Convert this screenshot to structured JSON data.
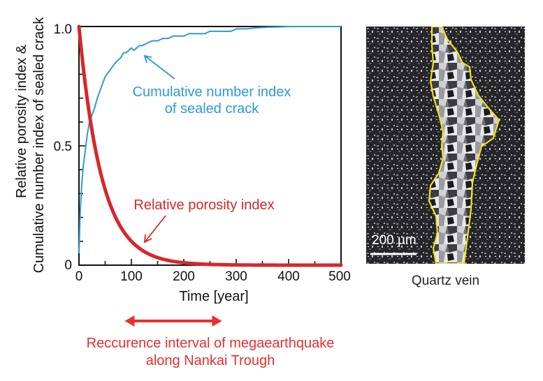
{
  "chart_data": {
    "type": "line",
    "xlabel": "Time [year]",
    "ylabel_line1": "Relative porosity index &",
    "ylabel_line2": "Cumulative number index of sealed crack",
    "xlim": [
      0,
      500
    ],
    "ylim": [
      0,
      1.0
    ],
    "x_ticks": [
      0,
      100,
      200,
      300,
      400,
      500
    ],
    "x_tick_labels": [
      "0",
      "100",
      "200",
      "300",
      "400",
      "500"
    ],
    "y_tick_labels": [
      {
        "value": 0,
        "label": "0"
      },
      {
        "value": 0.5,
        "label": "0.5"
      },
      {
        "value": 1.0,
        "label": "1.0"
      }
    ],
    "series": [
      {
        "name": "Cumulative number index of sealed crack",
        "color": "#2e9ad6",
        "x": [
          0,
          2,
          5,
          8,
          12,
          16,
          20,
          25,
          30,
          35,
          40,
          45,
          50,
          60,
          70,
          80,
          85,
          90,
          95,
          100,
          105,
          110,
          115,
          120,
          130,
          140,
          150,
          160,
          170,
          180,
          190,
          200,
          210,
          220,
          230,
          240,
          250,
          260,
          270,
          280,
          290,
          300,
          320,
          340,
          360,
          380,
          400,
          450,
          500
        ],
        "y": [
          0.05,
          0.2,
          0.33,
          0.41,
          0.48,
          0.55,
          0.6,
          0.63,
          0.66,
          0.7,
          0.73,
          0.76,
          0.79,
          0.82,
          0.85,
          0.87,
          0.89,
          0.89,
          0.9,
          0.91,
          0.9,
          0.91,
          0.92,
          0.92,
          0.93,
          0.94,
          0.94,
          0.95,
          0.95,
          0.96,
          0.96,
          0.96,
          0.97,
          0.97,
          0.97,
          0.97,
          0.98,
          0.98,
          0.98,
          0.98,
          0.98,
          0.99,
          0.99,
          0.995,
          0.997,
          0.998,
          1.0,
          1.0,
          1.0
        ]
      },
      {
        "name": "Relative porosity index",
        "color": "#d9262a",
        "decay_rate": 0.023
      }
    ],
    "annotations": [
      {
        "key": "blue_label_1",
        "text": "Cumulative number index",
        "color": "#2e9ad6"
      },
      {
        "key": "blue_label_2",
        "text": "of sealed crack",
        "color": "#2e9ad6"
      },
      {
        "key": "red_label",
        "text": "Relative porosity index",
        "color": "#d9262a"
      },
      {
        "key": "interval_1",
        "text": "Reccurence interval of megaearthquake",
        "color": "#e8302d"
      },
      {
        "key": "interval_2",
        "text": "along Nankai Trough",
        "color": "#e8302d"
      }
    ],
    "recurrence_interval_years": [
      90,
      270
    ],
    "grid": false,
    "legend": "none"
  },
  "micrograph": {
    "scale_bar_label": "200 µm",
    "caption": "Quartz vein",
    "outline_color": "#f2e219"
  }
}
